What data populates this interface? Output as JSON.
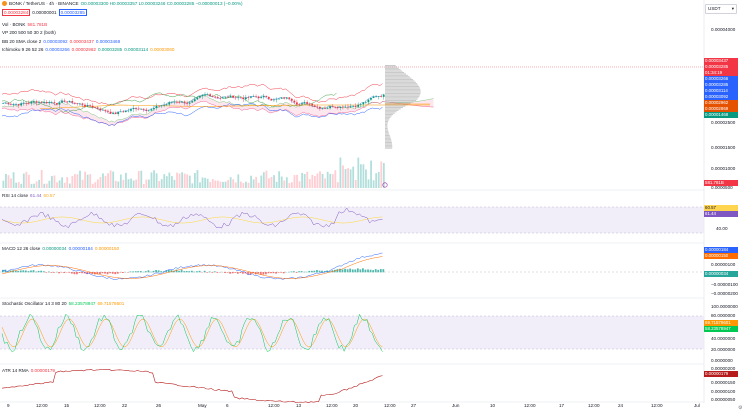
{
  "header": {
    "symbol": "BONK / TetherUS · 4h · BINANCE",
    "ohlc": "O0.00003300 H0.00003357 L0.00003246 C0.00003285 −0.00000013 (−0.00%)",
    "bid": "0.00003284",
    "spread": "0.00000001",
    "ask": "0.00003285",
    "currency": "USDT"
  },
  "indicators_main": {
    "vol_label": "Vol · BONK",
    "vol_value": "581.781B",
    "vp_label": "VP 200 500 50 30 2 (both)",
    "bb_label": "BB 20 SMA close 2",
    "bb_values": [
      "0.00003092",
      "0.00003437",
      "0.00003468"
    ],
    "ichimoku_label": "Ichimoku 9 26 52 26",
    "ichimoku_values": [
      "0.00003266",
      "0.00002962",
      "0.00003285",
      "0.00003114",
      "0.00003060"
    ]
  },
  "price_axis": {
    "ticks": [
      "0.00004000",
      "0.00003000",
      "0.00002500",
      "0.00002000",
      "0.00001500",
      "0.00001000",
      "0.0000500"
    ],
    "tags": [
      {
        "text": "0.00003437",
        "color": "#f23645"
      },
      {
        "text": "0.00003285",
        "color": "#f23645"
      },
      {
        "text": "01:34:19",
        "color": "#f23645"
      },
      {
        "text": "0.00003266",
        "color": "#2962ff"
      },
      {
        "text": "0.00003285",
        "color": "#2962ff"
      },
      {
        "text": "0.00003114",
        "color": "#2962ff"
      },
      {
        "text": "0.00003092",
        "color": "#2962ff"
      },
      {
        "text": "0.00002962",
        "color": "#e65100"
      },
      {
        "text": "0.00002869",
        "color": "#e65100"
      },
      {
        "text": "0.00001468",
        "color": "#089981"
      }
    ],
    "vol_tag": "581.781B"
  },
  "rsi": {
    "label": "RSI 14 close",
    "values": [
      "61.44",
      "60.57"
    ],
    "ticks": [
      "60.00",
      "40.00"
    ],
    "tags": [
      {
        "text": "60.57",
        "color": "#ffd54f"
      },
      {
        "text": "61.44",
        "color": "#7e57c2"
      }
    ]
  },
  "macd": {
    "label": "MACD 12 26 close",
    "values": [
      "0.00000034",
      "0.00000184",
      "0.00000150"
    ],
    "ticks": [
      "0.00000100",
      "0.00000000",
      "−0.00000100",
      "−0.00000200"
    ],
    "tags": [
      {
        "text": "0.00000184",
        "color": "#2962ff"
      },
      {
        "text": "0.00000150",
        "color": "#ff6d00"
      },
      {
        "text": "0.00000034",
        "color": "#26a69a"
      }
    ]
  },
  "stoch": {
    "label": "Stochastic Oscillator 14 3 80 20",
    "values": [
      "58.23578947",
      "69.71578601"
    ],
    "ticks": [
      "100.0000000",
      "80.0000000",
      "60.0000000",
      "40.0000000",
      "20.0000000",
      "0.0000000"
    ],
    "tags": [
      {
        "text": "69.71578601",
        "color": "#ff9800"
      },
      {
        "text": "58.23578947",
        "color": "#00c853"
      }
    ]
  },
  "atr": {
    "label": "ATR 14 RMA",
    "value": "0.00000179",
    "ticks": [
      "0.00000200",
      "0.00000150",
      "0.00000100",
      "0.00000050"
    ],
    "tag": "0.00000179"
  },
  "time_axis": {
    "labels": [
      "9",
      "12:00",
      "15",
      "12:00",
      "22",
      "26",
      "May",
      "6",
      "12:00",
      "13",
      "12:00",
      "20",
      "12:00",
      "27",
      "Jun",
      "10",
      "12:00",
      "17",
      "12:00",
      "24",
      "12:00",
      "Jul"
    ]
  },
  "colors": {
    "up": "#089981",
    "down": "#f23645",
    "bb": "#2962ff",
    "rsi": "#7e57c2",
    "macd": "#2962ff",
    "signal": "#ff6d00",
    "stoch_k": "#00c853",
    "stoch_d": "#ff9800",
    "atr": "#b71c1c"
  },
  "icons": {
    "settings": "gear-icon",
    "currency_caret": "chevron-down-icon"
  }
}
